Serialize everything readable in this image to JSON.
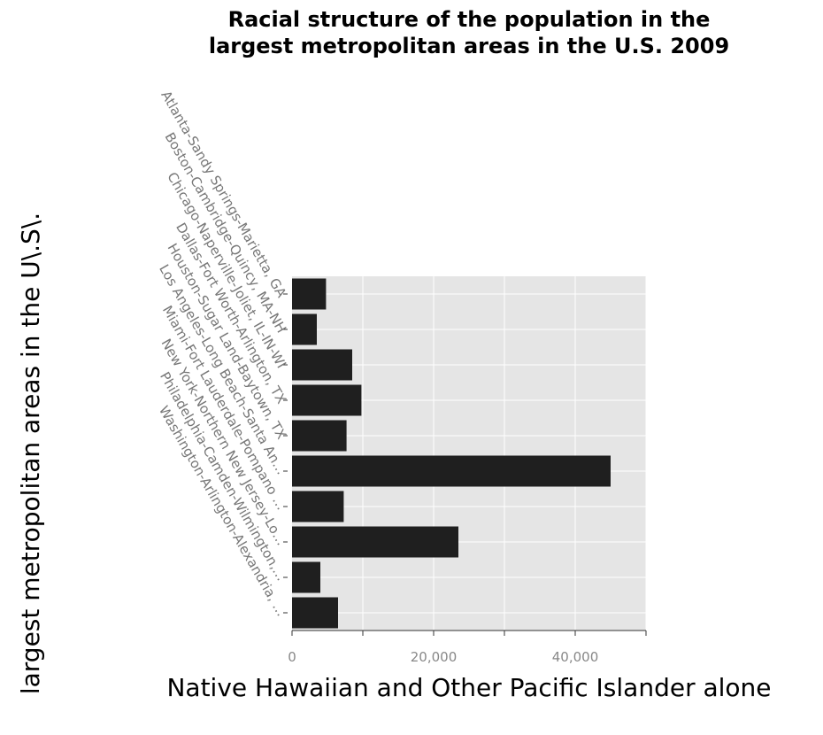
{
  "chart_data": {
    "type": "bar",
    "orientation": "horizontal",
    "title": [
      "Racial structure of the population in the",
      "largest metropolitan areas in the U.S. 2009"
    ],
    "xlabel": "Native Hawaiian and Other Pacific Islander alone",
    "ylabel": "largest metropolitan areas in the U\\.S\\.",
    "xlim": [
      0,
      50000
    ],
    "xticks": [
      0,
      10000,
      20000,
      30000,
      40000,
      50000
    ],
    "xtick_labels": [
      "0",
      "",
      "20,000",
      "",
      "40,000",
      ""
    ],
    "grid": true,
    "categories": [
      "Atlanta-Sandy Springs-Marietta, GA",
      "Boston-Cambridge-Quincy, MA-NH",
      "Chicago-Naperville-Joliet, IL-IN-WI",
      "Dallas-Fort Worth-Arlington, TX",
      "Houston-Sugar Land-Baytown, TX",
      "Los Angeles-Long Beach-Santa An…",
      "Miami-Fort Lauderdale-Pompano …",
      "New York-Northern New Jersey-Lo…",
      "Philadelphia-Camden-Wilmington,…",
      "Washington-Arlington-Alexandria, …"
    ],
    "values": [
      4800,
      3500,
      8500,
      9800,
      7700,
      45000,
      7300,
      23500,
      4000,
      6500
    ],
    "colors": {
      "bar": "#1f1f1f",
      "plot_bg": "#e5e5e5",
      "grid": "#ffffff"
    }
  }
}
